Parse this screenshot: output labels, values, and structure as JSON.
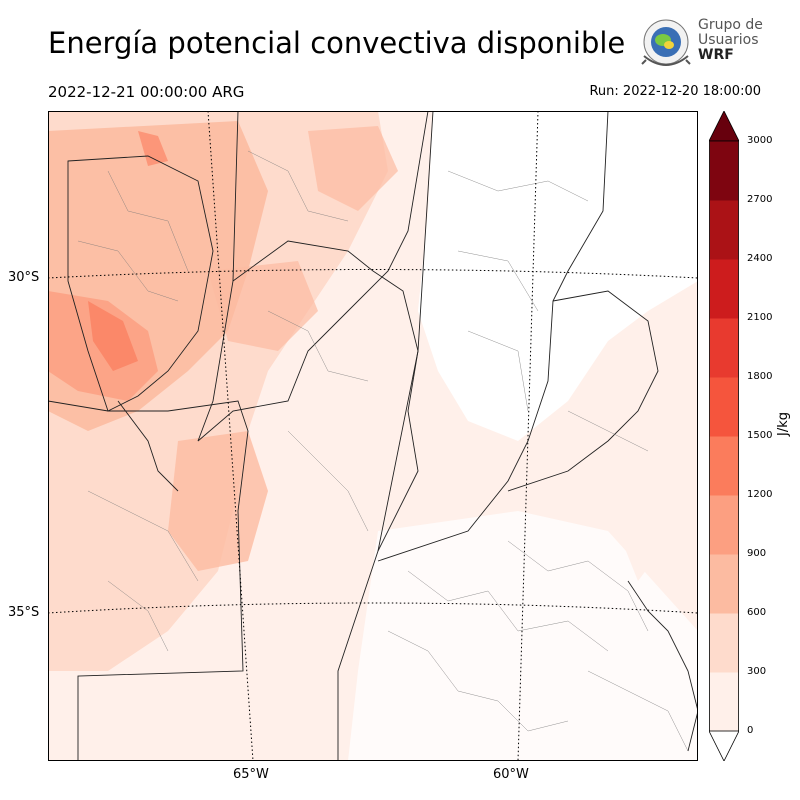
{
  "title": "Energía potencial convectiva disponible",
  "valid_time": "2022-12-21 00:00:00 ARG",
  "run_time": "Run: 2022-12-20 18:00:00",
  "logo": {
    "line1": "Grupo de",
    "line2": "Usuarios",
    "line3": "WRF"
  },
  "lat_labels": [
    "30°S",
    "35°S"
  ],
  "lon_labels": [
    "65°W",
    "60°W"
  ],
  "colorbar": {
    "unit": "J/kg",
    "ticks": [
      "0",
      "300",
      "600",
      "900",
      "1200",
      "1500",
      "1800",
      "2100",
      "2400",
      "2700",
      "3000"
    ],
    "colors": [
      "#fff0ea",
      "#fedbcc",
      "#fcbba1",
      "#fc9f81",
      "#fb7c5c",
      "#f5553d",
      "#e83a2f",
      "#cd1c1d",
      "#ab1216",
      "#7e0510"
    ],
    "over_color": "#67000d",
    "under_color": "#ffffff"
  }
}
